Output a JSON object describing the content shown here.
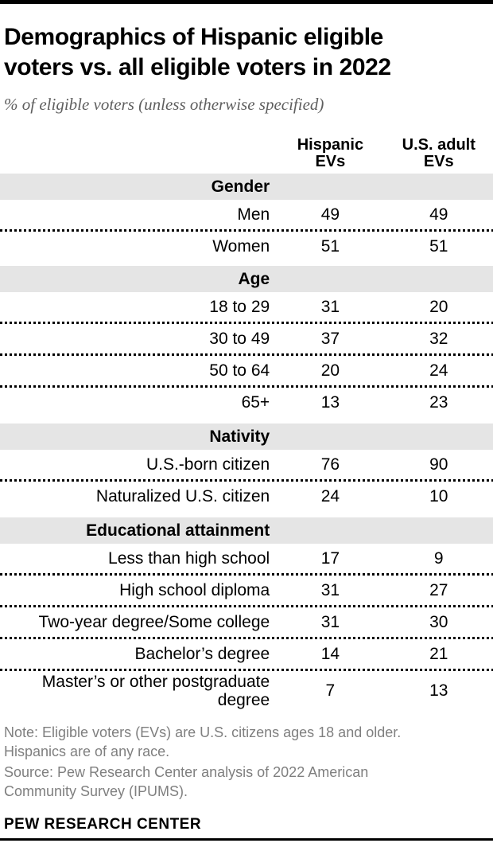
{
  "header": {
    "title_lines": [
      "Demographics of Hispanic eligible",
      "voters vs. all eligible voters in 2022"
    ],
    "subtitle": "% of eligible voters (unless otherwise specified)"
  },
  "table": {
    "col_headers": [
      {
        "line1": "Hispanic",
        "line2": "EVs"
      },
      {
        "line1": "U.S. adult",
        "line2": "EVs"
      }
    ]
  },
  "chart_data": {
    "type": "table",
    "title": "Demographics of Hispanic eligible voters vs. all eligible voters in 2022",
    "subtitle": "% of eligible voters (unless otherwise specified)",
    "columns": [
      "Hispanic EVs",
      "U.S. adult EVs"
    ],
    "unit": "% of eligible voters",
    "sections": [
      {
        "header": "Gender",
        "rows": [
          {
            "label": "Men",
            "values": [
              49,
              49
            ]
          },
          {
            "label": "Women",
            "values": [
              51,
              51
            ]
          }
        ]
      },
      {
        "header": "Age",
        "rows": [
          {
            "label": "18 to 29",
            "values": [
              31,
              20
            ]
          },
          {
            "label": "30 to 49",
            "values": [
              37,
              32
            ]
          },
          {
            "label": "50 to 64",
            "values": [
              20,
              24
            ]
          },
          {
            "label": "65+",
            "values": [
              13,
              23
            ]
          }
        ]
      },
      {
        "header": "Nativity",
        "rows": [
          {
            "label": "U.S.-born citizen",
            "values": [
              76,
              90
            ]
          },
          {
            "label": "Naturalized U.S. citizen",
            "values": [
              24,
              10
            ]
          }
        ]
      },
      {
        "header": "Educational attainment",
        "rows": [
          {
            "label": "Less than high school",
            "values": [
              17,
              9
            ]
          },
          {
            "label": "High school diploma",
            "values": [
              31,
              27
            ]
          },
          {
            "label": "Two-year degree/Some college",
            "values": [
              31,
              30
            ]
          },
          {
            "label": "Bachelor’s degree",
            "values": [
              14,
              21
            ]
          },
          {
            "label": "Master’s or other postgraduate degree",
            "values": [
              7,
              13
            ]
          }
        ]
      }
    ]
  },
  "footer": {
    "note_lines": [
      "Note: Eligible voters (EVs) are U.S. citizens ages 18 and older.",
      "Hispanics are of any race."
    ],
    "source_lines": [
      "Source: Pew Research Center analysis of 2022 American",
      "Community Survey (IPUMS)."
    ],
    "brand": "PEW RESEARCH CENTER"
  },
  "colors": {
    "section_band": "#e5e5e5",
    "note_gray": "#7f7f7f",
    "subtitle_gray": "#5f5f5f",
    "rule": "#000000"
  }
}
